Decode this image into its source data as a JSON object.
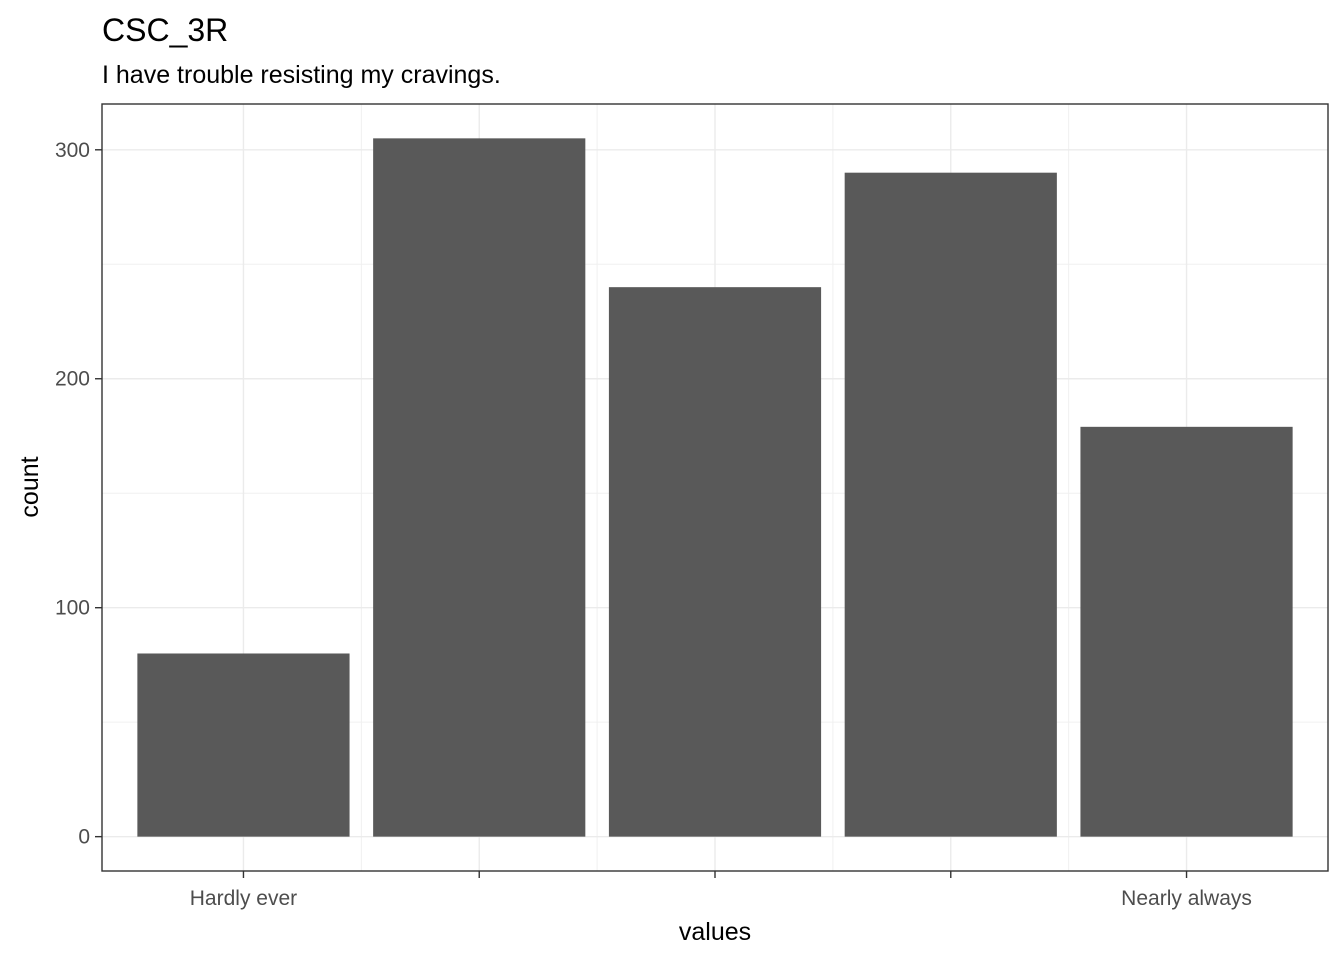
{
  "chart_data": {
    "type": "bar",
    "title": "CSC_3R",
    "subtitle": "I have trouble resisting my cravings.",
    "xlabel": "values",
    "ylabel": "count",
    "categories": [
      "Hardly ever",
      "",
      "",
      "",
      "Nearly always"
    ],
    "values": [
      80,
      305,
      240,
      290,
      179
    ],
    "ylim": [
      -15,
      320
    ],
    "yticks": [
      "0",
      "100",
      "200",
      "300"
    ],
    "bar_color": "#595959",
    "grid": true,
    "legend": "none"
  }
}
